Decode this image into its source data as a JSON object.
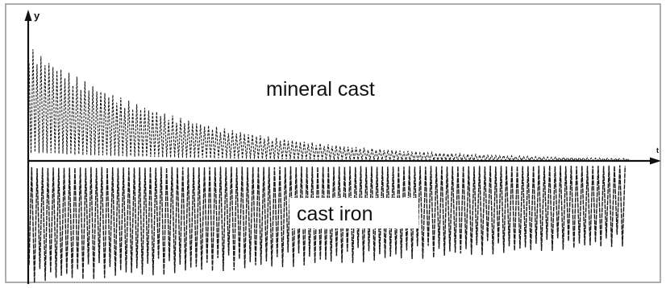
{
  "chart_data": {
    "type": "line",
    "title": "",
    "xlabel": "t",
    "ylabel": "y",
    "grid": false,
    "legend": "none",
    "axis_range": {
      "x": [
        0,
        1
      ],
      "y": [
        -1,
        1
      ]
    },
    "series": [
      {
        "name": "mineral cast",
        "side": "above-axis",
        "initial_amplitude": 0.95,
        "final_amplitude": 0.02,
        "decay": "exponential",
        "approx_cycles": 150,
        "color": "#1a1a1a"
      },
      {
        "name": "cast iron",
        "side": "below-axis",
        "initial_amplitude": 1.0,
        "final_amplitude": 0.7,
        "decay": "slow",
        "approx_cycles": 110,
        "color": "#1a1a1a"
      }
    ]
  },
  "colors": {
    "ink": "#1a1a1a",
    "frame": "#8a8a8a",
    "background": "#ffffff"
  }
}
